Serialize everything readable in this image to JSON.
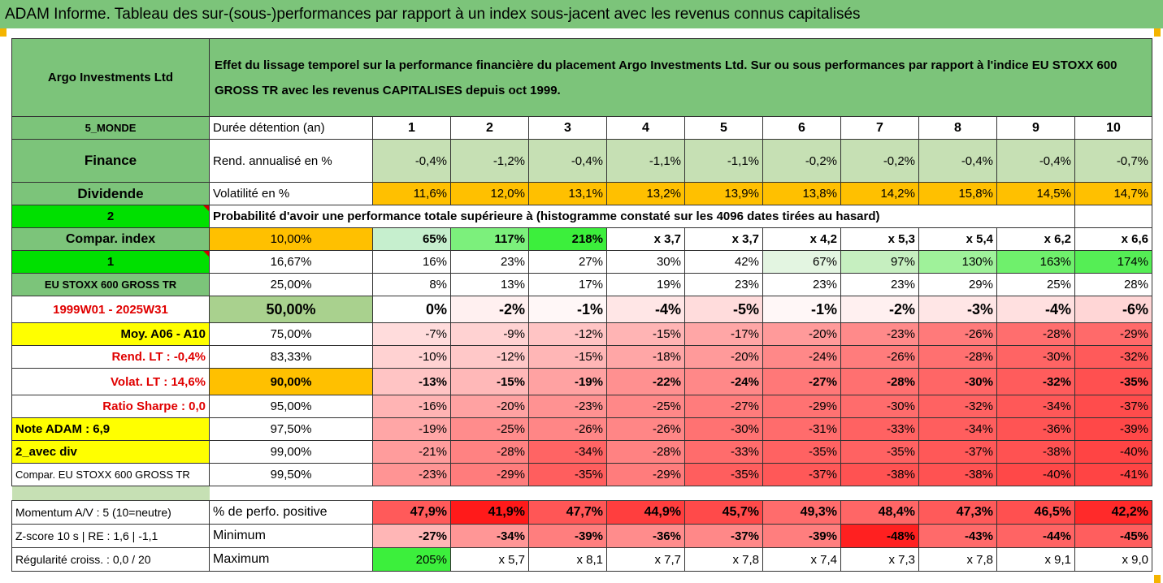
{
  "title": "ADAM Informe. Tableau des sur-(sous-)performances par rapport à un index sous-jacent avec les revenus connus capitalisés",
  "header": {
    "fund": "Argo Investments Ltd",
    "description": "Effet du lissage temporel sur la performance financière du placement Argo Investments Ltd. Sur ou sous performances par rapport à l'indice EU STOXX 600 GROSS TR avec les revenus CAPITALISES depuis oct 1999."
  },
  "left": {
    "zone": "5_MONDE",
    "sector": "Finance",
    "dividend": "Dividende",
    "code2": "2",
    "compar_index": "Compar. index",
    "code1": "1",
    "index_name": "EU STOXX 600 GROSS TR",
    "period": "1999W01 - 2025W31",
    "moy": "Moy. A06 - A10",
    "rend_lt": "Rend. LT :   -0,4%",
    "volat_lt": "Volat. LT :   14,6%",
    "sharpe": "Ratio Sharpe :    0,0",
    "note": "Note ADAM : 6,9",
    "avec_div": "2_avec div",
    "compar_eu": "Compar. EU STOXX 600 GROSS TR"
  },
  "stats": {
    "duree_label": "Durée détention (an)",
    "years": [
      "1",
      "2",
      "3",
      "4",
      "5",
      "6",
      "7",
      "8",
      "9",
      "10"
    ],
    "rend_label": "Rend. annualisé en %",
    "rend": [
      "-0,4%",
      "-1,2%",
      "-0,4%",
      "-1,1%",
      "-1,1%",
      "-0,2%",
      "-0,2%",
      "-0,4%",
      "-0,4%",
      "-0,7%"
    ],
    "vol_label": "Volatilité en %",
    "vol": [
      "11,6%",
      "12,0%",
      "13,1%",
      "13,2%",
      "13,9%",
      "13,8%",
      "14,2%",
      "15,8%",
      "14,5%",
      "14,7%"
    ],
    "prob_label": "Probabilité d'avoir une performance totale supérieure à (histogramme constaté sur les 4096 dates tirées au hasard)"
  },
  "quantiles": [
    {
      "p": "10,00%",
      "v": [
        "65%",
        "117%",
        "218%",
        "x 3,7",
        "x 3,7",
        "x 4,2",
        "x 5,3",
        "x 5,4",
        "x 6,2",
        "x 6,6"
      ]
    },
    {
      "p": "16,67%",
      "v": [
        "16%",
        "23%",
        "27%",
        "30%",
        "42%",
        "67%",
        "97%",
        "130%",
        "163%",
        "174%"
      ]
    },
    {
      "p": "25,00%",
      "v": [
        "8%",
        "13%",
        "17%",
        "19%",
        "23%",
        "23%",
        "23%",
        "29%",
        "25%",
        "28%"
      ]
    },
    {
      "p": "50,00%",
      "v": [
        "0%",
        "-2%",
        "-1%",
        "-4%",
        "-5%",
        "-1%",
        "-2%",
        "-3%",
        "-4%",
        "-6%"
      ]
    },
    {
      "p": "75,00%",
      "v": [
        "-7%",
        "-9%",
        "-12%",
        "-15%",
        "-17%",
        "-20%",
        "-23%",
        "-26%",
        "-28%",
        "-29%"
      ]
    },
    {
      "p": "83,33%",
      "v": [
        "-10%",
        "-12%",
        "-15%",
        "-18%",
        "-20%",
        "-24%",
        "-26%",
        "-28%",
        "-30%",
        "-32%"
      ]
    },
    {
      "p": "90,00%",
      "v": [
        "-13%",
        "-15%",
        "-19%",
        "-22%",
        "-24%",
        "-27%",
        "-28%",
        "-30%",
        "-32%",
        "-35%"
      ]
    },
    {
      "p": "95,00%",
      "v": [
        "-16%",
        "-20%",
        "-23%",
        "-25%",
        "-27%",
        "-29%",
        "-30%",
        "-32%",
        "-34%",
        "-37%"
      ]
    },
    {
      "p": "97,50%",
      "v": [
        "-19%",
        "-25%",
        "-26%",
        "-26%",
        "-30%",
        "-31%",
        "-33%",
        "-34%",
        "-36%",
        "-39%"
      ]
    },
    {
      "p": "99,00%",
      "v": [
        "-21%",
        "-28%",
        "-34%",
        "-28%",
        "-33%",
        "-35%",
        "-35%",
        "-37%",
        "-38%",
        "-40%"
      ]
    },
    {
      "p": "99,50%",
      "v": [
        "-23%",
        "-29%",
        "-35%",
        "-29%",
        "-35%",
        "-37%",
        "-38%",
        "-38%",
        "-40%",
        "-41%"
      ]
    }
  ],
  "bottom": [
    {
      "left": "Momentum A/V : 5 (10=neutre)",
      "label": "% de perfo. positive",
      "v": [
        "47,9%",
        "41,9%",
        "47,7%",
        "44,9%",
        "45,7%",
        "49,3%",
        "48,4%",
        "47,3%",
        "46,5%",
        "42,2%"
      ]
    },
    {
      "left": "Z-score 10 s  | RE : 1,6 | -1,1",
      "label": "Minimum",
      "v": [
        "-27%",
        "-34%",
        "-39%",
        "-36%",
        "-37%",
        "-39%",
        "-48%",
        "-43%",
        "-44%",
        "-45%"
      ]
    },
    {
      "left": "Régularité croiss. : 0,0 / 20",
      "label": "Maximum",
      "v": [
        "205%",
        "x 5,7",
        "x 8,1",
        "x 7,7",
        "x 7,8",
        "x 7,4",
        "x 7,3",
        "x 7,8",
        "x 9,1",
        "x 9,0"
      ]
    }
  ],
  "colors": {
    "header_green": "#7cc47a",
    "lime": "#00e000",
    "yellow": "#ffff00",
    "orange": "#ffc000",
    "rend_green": "#c6e0b4",
    "red_text": "#e00000"
  },
  "cell_colors": {
    "quantiles": [
      [
        "#c6efce",
        "#7cf07c",
        "#3cef3c",
        "#ffffff",
        "#ffffff",
        "#ffffff",
        "#ffffff",
        "#ffffff",
        "#ffffff",
        "#ffffff"
      ],
      [
        "#ffffff",
        "#ffffff",
        "#ffffff",
        "#ffffff",
        "#ffffff",
        "#e3f5e1",
        "#c6efc0",
        "#9ff29a",
        "#6ff06c",
        "#55ee55"
      ],
      [
        "#ffffff",
        "#ffffff",
        "#ffffff",
        "#ffffff",
        "#ffffff",
        "#ffffff",
        "#ffffff",
        "#ffffff",
        "#ffffff",
        "#ffffff"
      ],
      [
        "#ffffff",
        "#fff0f0",
        "#fff7f7",
        "#ffe6e6",
        "#ffdcdc",
        "#fff7f7",
        "#fff0f0",
        "#ffe6e6",
        "#ffe0e0",
        "#ffd6d6"
      ],
      [
        "#ffdcdc",
        "#ffd2d2",
        "#ffc4c4",
        "#ffb4b4",
        "#ffa6a6",
        "#ff9a9a",
        "#ff8a8a",
        "#ff7a7a",
        "#ff6e6e",
        "#ff6a6a"
      ],
      [
        "#ffd2d2",
        "#ffc8c8",
        "#ffb6b6",
        "#ffa6a6",
        "#ff9a9a",
        "#ff8888",
        "#ff7c7c",
        "#ff7070",
        "#ff6464",
        "#ff5a5a"
      ],
      [
        "#ffc4c4",
        "#ffb8b8",
        "#ffa2a2",
        "#ff9090",
        "#ff8888",
        "#ff7878",
        "#ff7070",
        "#ff6666",
        "#ff5c5c",
        "#ff5050"
      ],
      [
        "#ffb4b4",
        "#ffa2a2",
        "#ff9292",
        "#ff8888",
        "#ff7c7c",
        "#ff7272",
        "#ff6c6c",
        "#ff6262",
        "#ff5858",
        "#ff4c4c"
      ],
      [
        "#ffa6a6",
        "#ff8c8c",
        "#ff8686",
        "#ff8686",
        "#ff7272",
        "#ff6c6c",
        "#ff6262",
        "#ff5e5e",
        "#ff5454",
        "#ff4848"
      ],
      [
        "#ff9c9c",
        "#ff8282",
        "#ff6464",
        "#ff8282",
        "#ff6c6c",
        "#ff6262",
        "#ff6262",
        "#ff5858",
        "#ff5252",
        "#ff4444"
      ],
      [
        "#ff9494",
        "#ff7c7c",
        "#ff5e5e",
        "#ff7c7c",
        "#ff5e5e",
        "#ff5858",
        "#ff5252",
        "#ff5252",
        "#ff4848",
        "#ff4444"
      ]
    ],
    "bottom": [
      [
        "#ff5a5a",
        "#ff1a1a",
        "#ff5656",
        "#ff3e3e",
        "#ff4a4a",
        "#ff6c6c",
        "#ff6666",
        "#ff5a5a",
        "#ff5050",
        "#ff2a2a"
      ],
      [
        "#ffb6b6",
        "#ff9696",
        "#ff7e7e",
        "#ff8c8c",
        "#ff8888",
        "#ff7e7e",
        "#ff2020",
        "#ff6a6a",
        "#ff6464",
        "#ff5e5e"
      ],
      [
        "#3cef3c",
        "#ffffff",
        "#ffffff",
        "#ffffff",
        "#ffffff",
        "#ffffff",
        "#ffffff",
        "#ffffff",
        "#ffffff",
        "#ffffff"
      ]
    ]
  }
}
